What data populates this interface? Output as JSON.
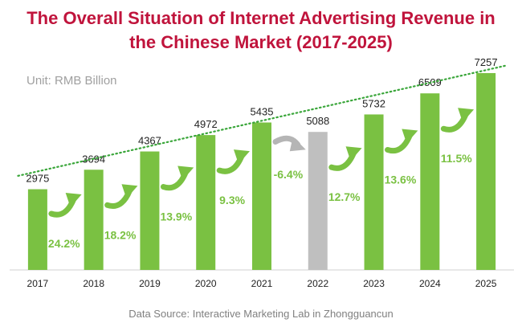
{
  "title_line1": "The Overall Situation of Internet Advertising Revenue in",
  "title_line2": "the Chinese Market (2017-2025)",
  "unit": "Unit: RMB Billion",
  "source": "Data Source:  Interactive Marketing Lab in Zhongguancun",
  "colors": {
    "title": "#c0143c",
    "bar": "#7ac142",
    "bar_decline": "#bfbfbf",
    "arrow_growth": "#7ac142",
    "arrow_decline": "#b5b5b5",
    "growth_label": "#7ac142",
    "trendline": "#3aa63a"
  },
  "chart_data": {
    "type": "bar",
    "title": "The Overall Situation of Internet Advertising Revenue in the Chinese Market (2017-2025)",
    "ylabel": "Unit: RMB Billion",
    "categories": [
      "2017",
      "2018",
      "2019",
      "2020",
      "2021",
      "2022",
      "2023",
      "2024",
      "2025"
    ],
    "values": [
      2975,
      3694,
      4367,
      4972,
      5435,
      5088,
      5732,
      6509,
      7257
    ],
    "value_labels": [
      "2975",
      "3694",
      "4367",
      "4972",
      "5435",
      "5088",
      "5732",
      "6509",
      "7257"
    ],
    "highlight": [
      "normal",
      "normal",
      "normal",
      "normal",
      "normal",
      "decline",
      "normal",
      "normal",
      "normal"
    ],
    "growth_rates": [
      "24.2%",
      "18.2%",
      "13.9%",
      "9.3%",
      "-6.4%",
      "12.7%",
      "13.6%",
      "11.5%"
    ],
    "growth_direction": [
      "up",
      "up",
      "up",
      "up",
      "down",
      "up",
      "up",
      "up"
    ],
    "trendline": "linear, dotted",
    "ylim": [
      0,
      7700
    ],
    "grid": false
  }
}
